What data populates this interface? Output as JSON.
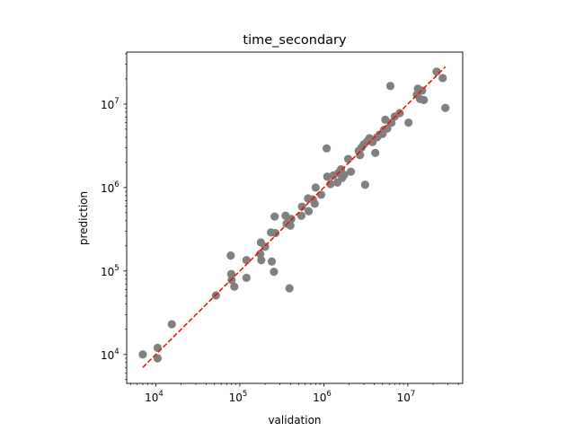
{
  "chart_data": {
    "type": "scatter",
    "title": "time_secondary",
    "xlabel": "validation",
    "ylabel": "prediction",
    "xscale": "log",
    "yscale": "log",
    "xlim": [
      4500,
      45000000
    ],
    "ylim": [
      4500,
      42000000
    ],
    "grid": false,
    "x_ticks": [
      {
        "value": 10000,
        "base": "10",
        "exp": "4"
      },
      {
        "value": 100000,
        "base": "10",
        "exp": "5"
      },
      {
        "value": 1000000,
        "base": "10",
        "exp": "6"
      },
      {
        "value": 10000000,
        "base": "10",
        "exp": "7"
      }
    ],
    "y_ticks": [
      {
        "value": 10000,
        "base": "10",
        "exp": "4"
      },
      {
        "value": 100000,
        "base": "10",
        "exp": "5"
      },
      {
        "value": 1000000,
        "base": "10",
        "exp": "6"
      },
      {
        "value": 10000000,
        "base": "10",
        "exp": "7"
      }
    ],
    "point_color": "#808080",
    "line_color": "#ff0000",
    "reference_line": {
      "style": "dashed",
      "x": [
        7000,
        28000000
      ],
      "y": [
        7000,
        28000000
      ]
    },
    "points": [
      {
        "x": 7000,
        "y": 10000
      },
      {
        "x": 10500,
        "y": 12000
      },
      {
        "x": 10500,
        "y": 9000
      },
      {
        "x": 15500,
        "y": 23000
      },
      {
        "x": 52000,
        "y": 51000
      },
      {
        "x": 78000,
        "y": 153000
      },
      {
        "x": 79000,
        "y": 92000
      },
      {
        "x": 80000,
        "y": 78000
      },
      {
        "x": 86000,
        "y": 65000
      },
      {
        "x": 120000,
        "y": 135000
      },
      {
        "x": 120000,
        "y": 83000
      },
      {
        "x": 175000,
        "y": 160000
      },
      {
        "x": 178000,
        "y": 220000
      },
      {
        "x": 180000,
        "y": 135000
      },
      {
        "x": 200000,
        "y": 195000
      },
      {
        "x": 235000,
        "y": 290000
      },
      {
        "x": 240000,
        "y": 130000
      },
      {
        "x": 255000,
        "y": 98000
      },
      {
        "x": 260000,
        "y": 450000
      },
      {
        "x": 265000,
        "y": 285000
      },
      {
        "x": 350000,
        "y": 460000
      },
      {
        "x": 360000,
        "y": 370000
      },
      {
        "x": 390000,
        "y": 62000
      },
      {
        "x": 400000,
        "y": 350000
      },
      {
        "x": 410000,
        "y": 420000
      },
      {
        "x": 540000,
        "y": 460000
      },
      {
        "x": 550000,
        "y": 590000
      },
      {
        "x": 650000,
        "y": 740000
      },
      {
        "x": 660000,
        "y": 520000
      },
      {
        "x": 740000,
        "y": 720000
      },
      {
        "x": 780000,
        "y": 640000
      },
      {
        "x": 800000,
        "y": 1000000
      },
      {
        "x": 930000,
        "y": 820000
      },
      {
        "x": 1080000,
        "y": 2950000
      },
      {
        "x": 1100000,
        "y": 1350000
      },
      {
        "x": 1200000,
        "y": 1100000
      },
      {
        "x": 1300000,
        "y": 1400000
      },
      {
        "x": 1450000,
        "y": 1150000
      },
      {
        "x": 1500000,
        "y": 1500000
      },
      {
        "x": 1600000,
        "y": 1650000
      },
      {
        "x": 1650000,
        "y": 1300000
      },
      {
        "x": 1750000,
        "y": 1420000
      },
      {
        "x": 1950000,
        "y": 2200000
      },
      {
        "x": 2100000,
        "y": 1550000
      },
      {
        "x": 2600000,
        "y": 2750000
      },
      {
        "x": 2700000,
        "y": 2450000
      },
      {
        "x": 2800000,
        "y": 3000000
      },
      {
        "x": 3000000,
        "y": 3300000
      },
      {
        "x": 3100000,
        "y": 1080000
      },
      {
        "x": 3300000,
        "y": 3600000
      },
      {
        "x": 3500000,
        "y": 3900000
      },
      {
        "x": 3800000,
        "y": 3500000
      },
      {
        "x": 4100000,
        "y": 2600000
      },
      {
        "x": 4300000,
        "y": 4000000
      },
      {
        "x": 4600000,
        "y": 4300000
      },
      {
        "x": 5000000,
        "y": 4400000
      },
      {
        "x": 5200000,
        "y": 4900000
      },
      {
        "x": 5400000,
        "y": 6500000
      },
      {
        "x": 5700000,
        "y": 5100000
      },
      {
        "x": 6200000,
        "y": 16500000
      },
      {
        "x": 6400000,
        "y": 6000000
      },
      {
        "x": 7000000,
        "y": 7100000
      },
      {
        "x": 8000000,
        "y": 7800000
      },
      {
        "x": 10200000,
        "y": 6000000
      },
      {
        "x": 12800000,
        "y": 13000000
      },
      {
        "x": 13200000,
        "y": 15300000
      },
      {
        "x": 14000000,
        "y": 11500000
      },
      {
        "x": 14800000,
        "y": 14500000
      },
      {
        "x": 15500000,
        "y": 11200000
      },
      {
        "x": 22000000,
        "y": 24500000
      },
      {
        "x": 26000000,
        "y": 20500000
      },
      {
        "x": 28000000,
        "y": 9000000
      }
    ]
  }
}
